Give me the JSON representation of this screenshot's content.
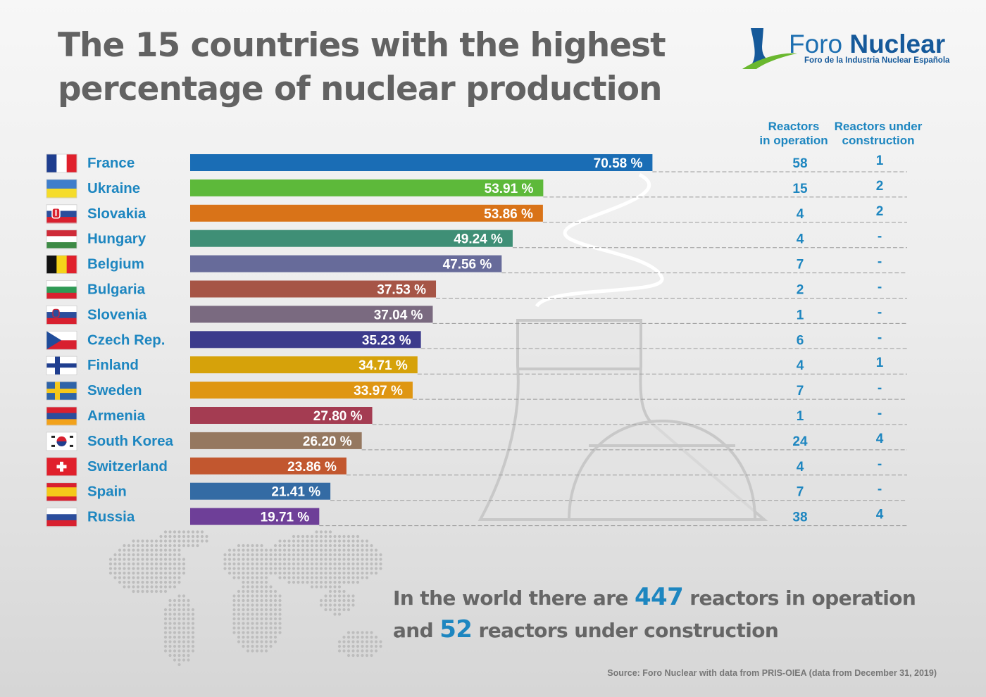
{
  "title": {
    "line1": "The 15 countries with the highest",
    "line2": "percentage of nuclear production"
  },
  "logo": {
    "name_light": "Foro",
    "name_bold": "Nuclear",
    "tagline": "Foro de la Industria Nuclear Española",
    "colors": {
      "blue": "#15599a",
      "green": "#6ab82f"
    }
  },
  "columns": {
    "operation_line1": "Reactors",
    "operation_line2": "in operation",
    "construction_line1": "Reactors under",
    "construction_line2": "construction"
  },
  "chart_data": {
    "type": "bar",
    "orientation": "horizontal",
    "title": "The 15 countries with the highest percentage of nuclear production",
    "xlabel": "",
    "ylabel": "",
    "xlim": [
      0,
      100
    ],
    "grid": false,
    "unit": "%",
    "categories": [
      "France",
      "Ukraine",
      "Slovakia",
      "Hungary",
      "Belgium",
      "Bulgaria",
      "Slovenia",
      "Czech Rep.",
      "Finland",
      "Sweden",
      "Armenia",
      "South Korea",
      "Switzerland",
      "Spain",
      "Russia"
    ],
    "values": [
      70.58,
      53.91,
      53.86,
      49.24,
      47.56,
      37.53,
      37.04,
      35.23,
      34.71,
      33.97,
      27.8,
      26.2,
      23.86,
      21.41,
      19.71
    ],
    "value_labels": [
      "70.58 %",
      "53.91 %",
      "53.86 %",
      "49.24 %",
      "47.56 %",
      "37.53 %",
      "37.04 %",
      "35.23 %",
      "34.71 %",
      "33.97 %",
      "27.80 %",
      "26.20 %",
      "23.86 %",
      "21.41 %",
      "19.71 %"
    ],
    "colors": [
      "#1a6db5",
      "#5db93a",
      "#d97318",
      "#3f8f76",
      "#676b9a",
      "#a65546",
      "#7a6a80",
      "#3c3b8c",
      "#d6a20a",
      "#df9612",
      "#a43c52",
      "#957860",
      "#c2572f",
      "#346ba4",
      "#6e3f98"
    ],
    "reactors_in_operation": [
      "58",
      "15",
      "4",
      "4",
      "7",
      "2",
      "1",
      "6",
      "4",
      "7",
      "1",
      "24",
      "4",
      "7",
      "38"
    ],
    "reactors_under_construction": [
      "1",
      "2",
      "2",
      "-",
      "-",
      "-",
      "-",
      "-",
      "1",
      "-",
      "-",
      "4",
      "-",
      "-",
      "4"
    ],
    "flags": [
      "france-flag",
      "ukraine-flag",
      "slovakia-flag",
      "hungary-flag",
      "belgium-flag",
      "bulgaria-flag",
      "slovenia-flag",
      "czech-flag",
      "finland-flag",
      "sweden-flag",
      "armenia-flag",
      "south-korea-flag",
      "switzerland-flag",
      "spain-flag",
      "russia-flag"
    ]
  },
  "summary": {
    "part1": "In the world there are ",
    "operating": "447",
    "part2": " reactors in operation",
    "part3": "and ",
    "construction": "52",
    "part4": " reactors under construction"
  },
  "source": "Source: Foro Nuclear with data from PRIS-OIEA (data from December 31, 2019)"
}
